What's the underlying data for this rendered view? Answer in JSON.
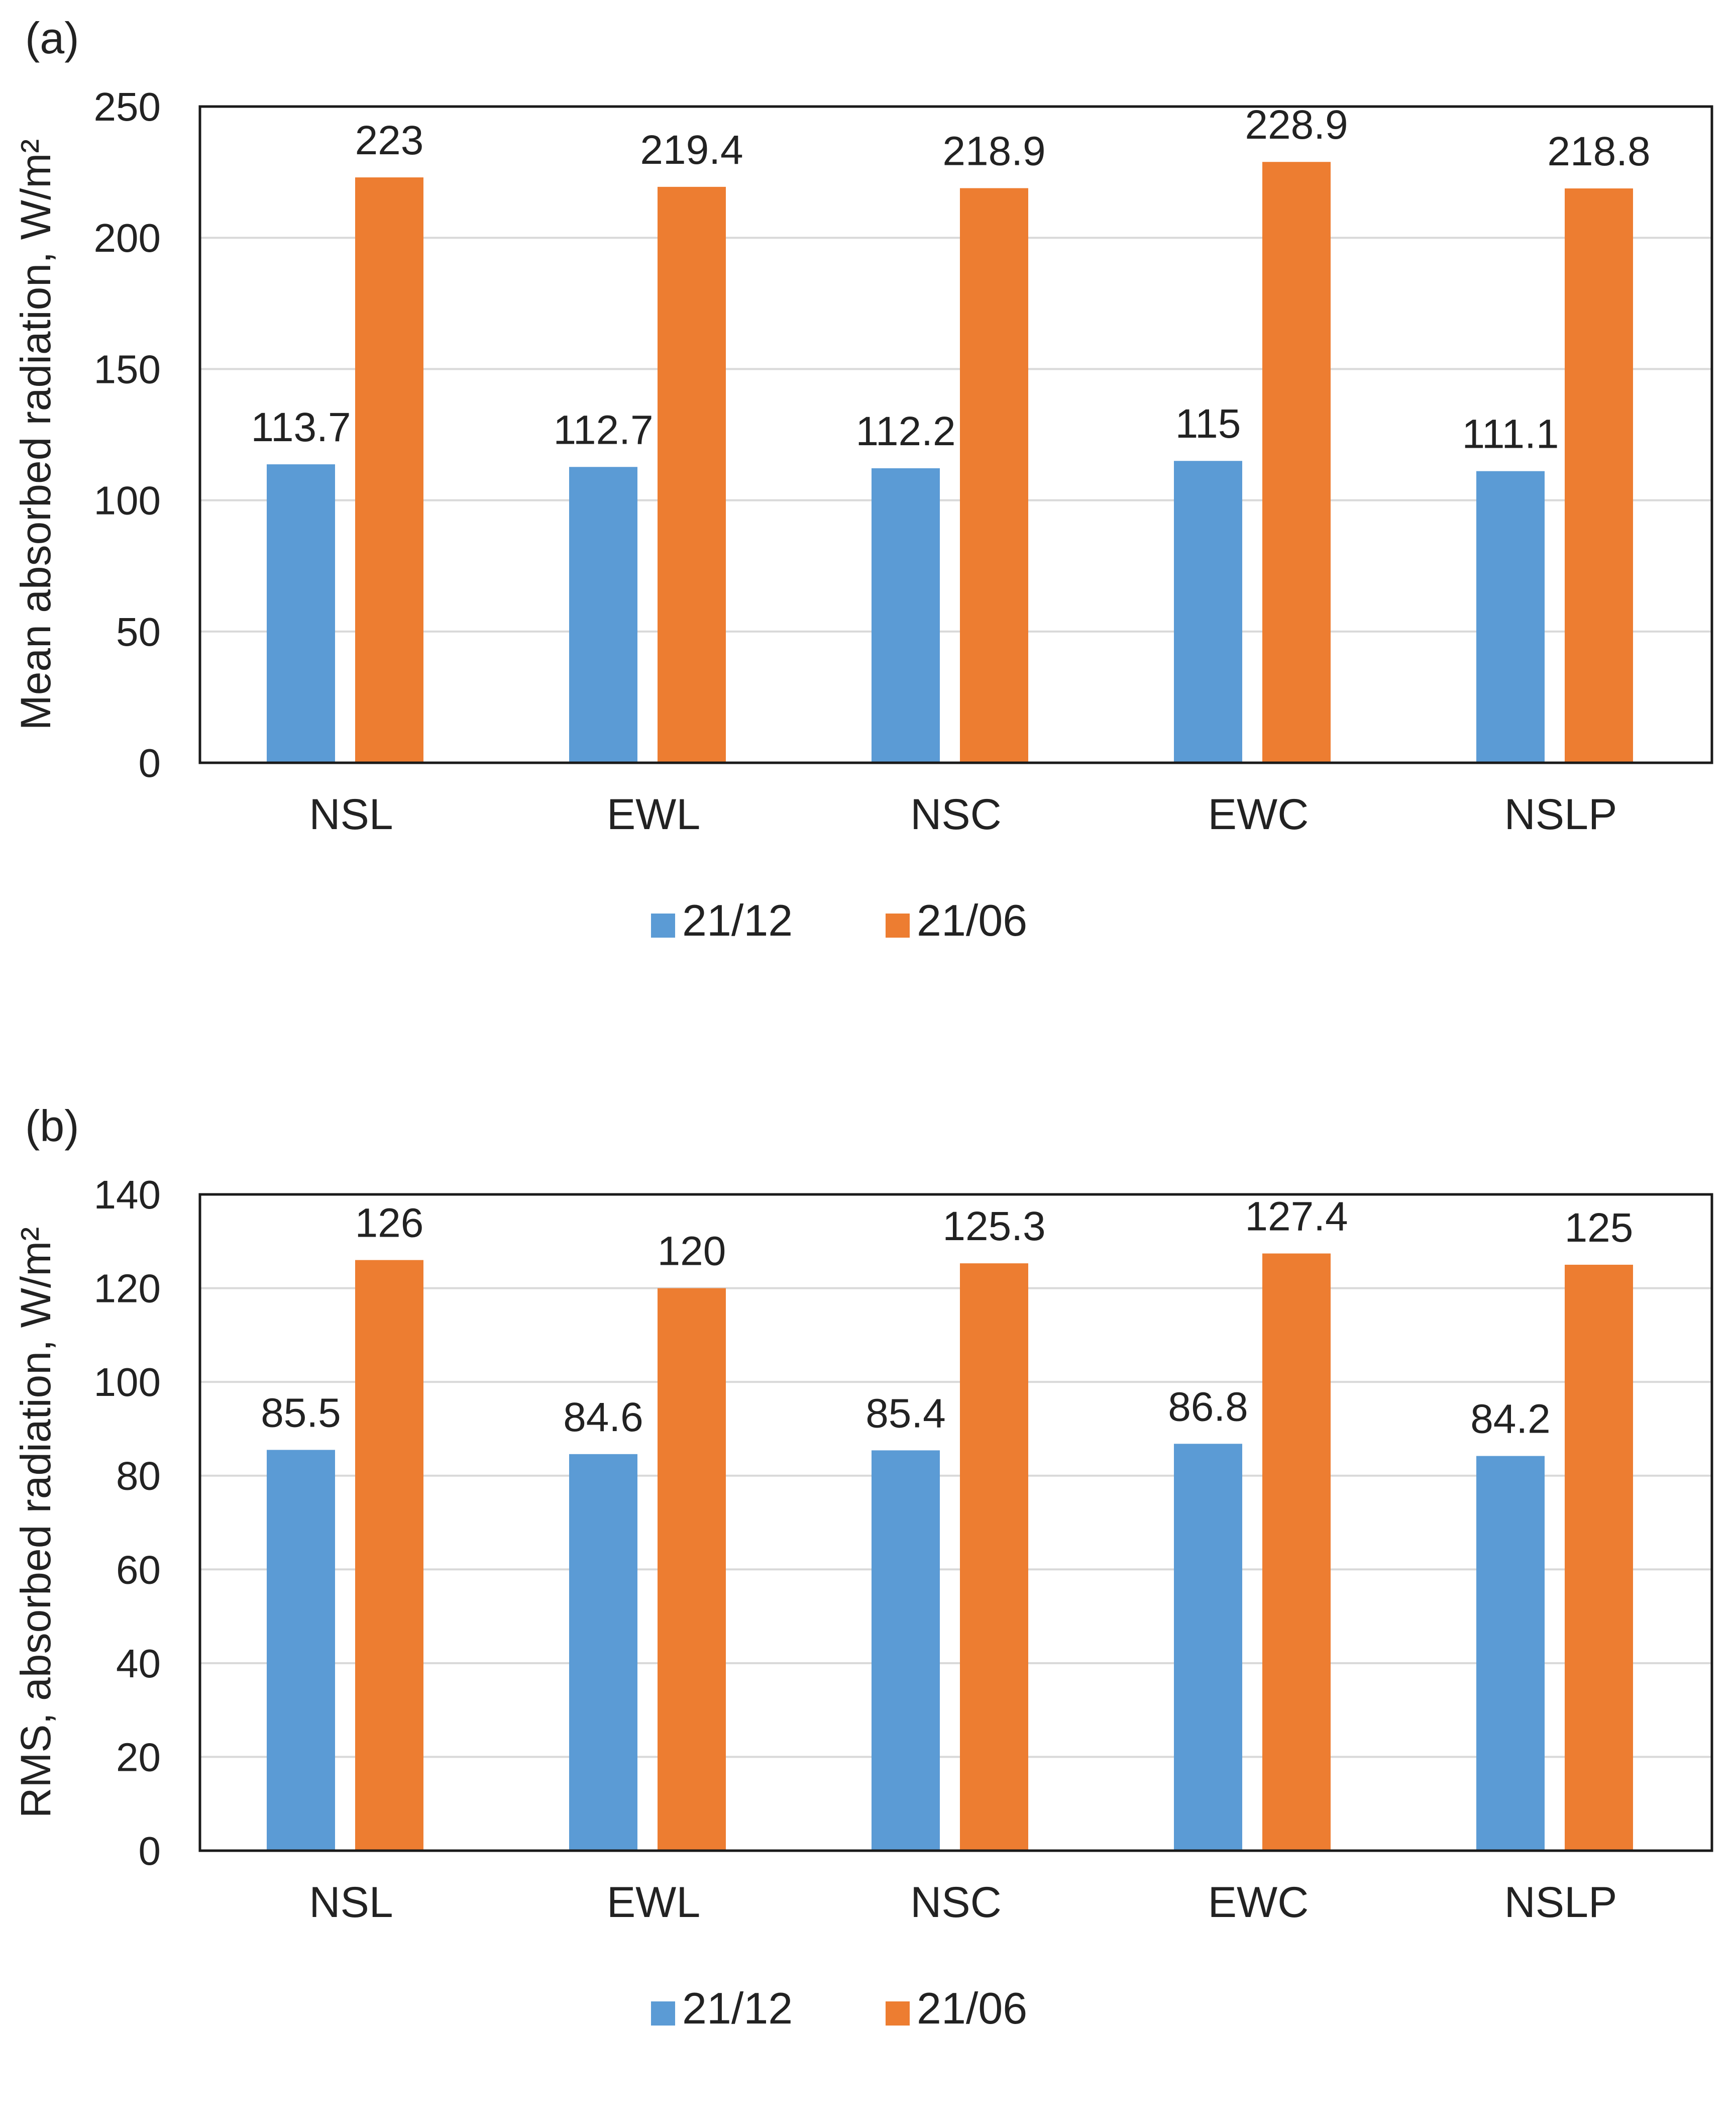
{
  "chart_data": [
    {
      "panel_label": "(a)",
      "type": "bar",
      "title": "",
      "xlabel": "",
      "ylabel": "Mean absorbed radiation, W/m²",
      "ylim": [
        0,
        250
      ],
      "yticks": [
        0,
        50,
        100,
        150,
        200,
        250
      ],
      "grid": true,
      "legend_position": "bottom",
      "categories": [
        "NSL",
        "EWL",
        "NSC",
        "EWC",
        "NSLP"
      ],
      "series": [
        {
          "name": "21/12",
          "color": "#5b9bd5",
          "values": [
            113.7,
            112.7,
            112.2,
            115,
            111.1
          ]
        },
        {
          "name": "21/06",
          "color": "#ed7d31",
          "values": [
            223,
            219.4,
            218.9,
            228.9,
            218.8
          ]
        }
      ]
    },
    {
      "panel_label": "(b)",
      "type": "bar",
      "title": "",
      "xlabel": "",
      "ylabel": "RMS, absorbed radiation, W/m²",
      "ylim": [
        0,
        140
      ],
      "yticks": [
        0,
        20,
        40,
        60,
        80,
        100,
        120,
        140
      ],
      "grid": true,
      "legend_position": "bottom",
      "categories": [
        "NSL",
        "EWL",
        "NSC",
        "EWC",
        "NSLP"
      ],
      "series": [
        {
          "name": "21/12",
          "color": "#5b9bd5",
          "values": [
            85.5,
            84.6,
            85.4,
            86.8,
            84.2
          ]
        },
        {
          "name": "21/06",
          "color": "#ed7d31",
          "values": [
            126,
            120,
            125.3,
            127.4,
            125
          ]
        }
      ]
    }
  ]
}
